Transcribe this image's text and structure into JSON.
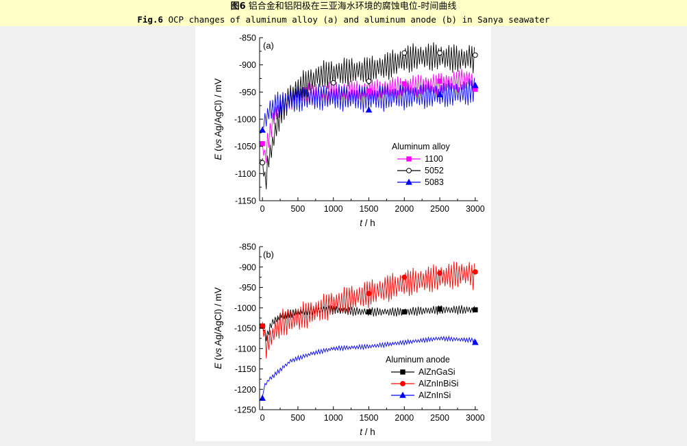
{
  "caption": {
    "cn_label": "图6",
    "cn_text": " 铝合金和铝阳极在三亚海水环境的腐蚀电位-时间曲线",
    "en_label": "Fig.6",
    "en_text": " OCP changes of aluminum alloy (a) and aluminum anode (b) in Sanya seawater"
  },
  "chart_data": [
    {
      "type": "line",
      "panel_label": "(a)",
      "xlabel_italic": "t",
      "xlabel_rest": " / h",
      "ylabel_pre": "E",
      "ylabel_vs": "vs",
      "ylabel_rest": " Ag/AgCl) / mV",
      "xlim": [
        -40,
        3040
      ],
      "ylim": [
        -1150,
        -850
      ],
      "xticks": [
        0,
        500,
        1000,
        1500,
        2000,
        2500,
        3000
      ],
      "yticks": [
        -1150,
        -1100,
        -1050,
        -1000,
        -950,
        -900,
        -850
      ],
      "legend_title": "Aluminum alloy",
      "legend_position": "right",
      "series": [
        {
          "name": "1100",
          "color": "#ff00ff",
          "marker": "square",
          "fill": "#ff00ff",
          "amplitude": 22,
          "period": 36,
          "envelope": [
            [
              0,
              -1050
            ],
            [
              40,
              -1075
            ],
            [
              80,
              -1040
            ],
            [
              150,
              -1000
            ],
            [
              250,
              -975
            ],
            [
              400,
              -962
            ],
            [
              600,
              -955
            ],
            [
              1000,
              -950
            ],
            [
              1500,
              -948
            ],
            [
              2000,
              -940
            ],
            [
              2500,
              -935
            ],
            [
              2950,
              -925
            ],
            [
              3000,
              -945
            ]
          ],
          "markers": [
            [
              0,
              -1045
            ],
            [
              1500,
              -948
            ],
            [
              2000,
              -935
            ],
            [
              2500,
              -930
            ],
            [
              3000,
              -945
            ]
          ]
        },
        {
          "name": "5052",
          "color": "#000000",
          "marker": "circle",
          "fill": "#ffffff",
          "amplitude": 28,
          "period": 36,
          "envelope": [
            [
              0,
              -1080
            ],
            [
              40,
              -1120
            ],
            [
              80,
              -1080
            ],
            [
              150,
              -1040
            ],
            [
              250,
              -990
            ],
            [
              400,
              -955
            ],
            [
              600,
              -935
            ],
            [
              800,
              -920
            ],
            [
              1000,
              -915
            ],
            [
              1200,
              -912
            ],
            [
              1500,
              -910
            ],
            [
              1800,
              -900
            ],
            [
              2000,
              -890
            ],
            [
              2200,
              -885
            ],
            [
              2500,
              -885
            ],
            [
              2800,
              -890
            ],
            [
              2950,
              -885
            ],
            [
              3000,
              -895
            ]
          ],
          "markers": [
            [
              0,
              -1080
            ],
            [
              1000,
              -933
            ],
            [
              1500,
              -930
            ],
            [
              2000,
              -878
            ],
            [
              2500,
              -878
            ],
            [
              3000,
              -882
            ]
          ]
        },
        {
          "name": "5083",
          "color": "#0000ff",
          "marker": "triangle",
          "fill": "#0000ff",
          "amplitude": 26,
          "period": 36,
          "envelope": [
            [
              0,
              -1020
            ],
            [
              40,
              -1000
            ],
            [
              100,
              -985
            ],
            [
              200,
              -975
            ],
            [
              400,
              -965
            ],
            [
              700,
              -960
            ],
            [
              1000,
              -960
            ],
            [
              1500,
              -962
            ],
            [
              2000,
              -958
            ],
            [
              2500,
              -955
            ],
            [
              2950,
              -950
            ],
            [
              3000,
              -938
            ]
          ],
          "markers": [
            [
              0,
              -1020
            ],
            [
              1500,
              -983
            ],
            [
              2500,
              -955
            ],
            [
              3000,
              -938
            ]
          ]
        }
      ]
    },
    {
      "type": "line",
      "panel_label": "(b)",
      "xlabel_italic": "t",
      "xlabel_rest": " / h",
      "ylabel_pre": "E",
      "ylabel_vs": "vs",
      "ylabel_rest": " Ag/AgCl) / mV",
      "xlim": [
        -40,
        3040
      ],
      "ylim": [
        -1250,
        -850
      ],
      "xticks": [
        0,
        500,
        1000,
        1500,
        2000,
        2500,
        3000
      ],
      "yticks": [
        -1250,
        -1200,
        -1150,
        -1100,
        -1050,
        -1000,
        -950,
        -900,
        -850
      ],
      "legend_title": "Aluminum anode",
      "legend_position": "right",
      "series": [
        {
          "name": "AlZnGaSi",
          "color": "#000000",
          "marker": "square",
          "fill": "#000000",
          "amplitude": 12,
          "period": 36,
          "envelope": [
            [
              0,
              -1045
            ],
            [
              60,
              -1075
            ],
            [
              120,
              -1040
            ],
            [
              250,
              -1020
            ],
            [
              500,
              -1010
            ],
            [
              800,
              -1005
            ],
            [
              1000,
              -1005
            ],
            [
              1200,
              -1008
            ],
            [
              1500,
              -1010
            ],
            [
              2000,
              -1010
            ],
            [
              2500,
              -1005
            ],
            [
              3000,
              -1005
            ]
          ],
          "markers": [
            [
              0,
              -1045
            ],
            [
              1500,
              -1010
            ],
            [
              2000,
              -1010
            ],
            [
              2500,
              -1003
            ],
            [
              3000,
              -1005
            ]
          ]
        },
        {
          "name": "AlZnInBiSi",
          "color": "#ff0000",
          "marker": "circle",
          "fill": "#ff0000",
          "amplitude": 36,
          "period": 36,
          "envelope": [
            [
              0,
              -1045
            ],
            [
              60,
              -1100
            ],
            [
              120,
              -1070
            ],
            [
              250,
              -1040
            ],
            [
              500,
              -1025
            ],
            [
              800,
              -1005
            ],
            [
              1000,
              -990
            ],
            [
              1300,
              -975
            ],
            [
              1500,
              -965
            ],
            [
              2000,
              -940
            ],
            [
              2500,
              -925
            ],
            [
              2900,
              -915
            ],
            [
              3000,
              -925
            ]
          ],
          "markers": [
            [
              0,
              -1045
            ],
            [
              1500,
              -965
            ],
            [
              2000,
              -925
            ],
            [
              2500,
              -915
            ],
            [
              3000,
              -912
            ]
          ]
        },
        {
          "name": "AlZnInSi",
          "color": "#0000ff",
          "marker": "triangle",
          "fill": "#0000ff",
          "amplitude": 6,
          "period": 36,
          "envelope": [
            [
              0,
              -1220
            ],
            [
              30,
              -1190
            ],
            [
              100,
              -1175
            ],
            [
              200,
              -1160
            ],
            [
              400,
              -1130
            ],
            [
              700,
              -1112
            ],
            [
              1000,
              -1100
            ],
            [
              1500,
              -1095
            ],
            [
              2000,
              -1085
            ],
            [
              2500,
              -1075
            ],
            [
              3000,
              -1080
            ]
          ],
          "markers": [
            [
              0,
              -1222
            ],
            [
              3000,
              -1085
            ]
          ]
        }
      ]
    }
  ]
}
